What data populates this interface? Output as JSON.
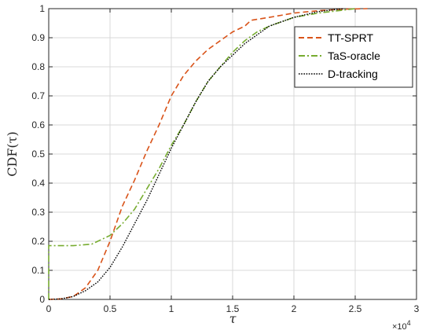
{
  "chart_data": {
    "type": "line",
    "title": "",
    "xlabel": "τ",
    "ylabel": "CDF(τ)",
    "x_exponent_base": "×10",
    "x_exponent_power": "4",
    "xlim": [
      0,
      3
    ],
    "ylim": [
      0,
      1
    ],
    "xticks": [
      0,
      0.5,
      1,
      1.5,
      2,
      2.5,
      3
    ],
    "xtick_labels": [
      "0",
      "0.5",
      "1",
      "1.5",
      "2",
      "2.5",
      "3"
    ],
    "yticks": [
      0,
      0.1,
      0.2,
      0.3,
      0.4,
      0.5,
      0.6,
      0.7,
      0.8,
      0.9,
      1
    ],
    "ytick_labels": [
      "0",
      "0.1",
      "0.2",
      "0.3",
      "0.4",
      "0.5",
      "0.6",
      "0.7",
      "0.8",
      "0.9",
      "1"
    ],
    "grid": true,
    "legend_position": "top-right",
    "series": [
      {
        "name": "TT-SPRT",
        "color": "#D95319",
        "style": "dashed",
        "x": [
          0,
          0.1,
          0.2,
          0.3,
          0.4,
          0.5,
          0.55,
          0.6,
          0.7,
          0.8,
          0.9,
          1.0,
          1.1,
          1.2,
          1.3,
          1.4,
          1.5,
          1.6,
          1.65,
          1.8,
          2.0,
          2.2,
          2.4,
          2.6
        ],
        "y": [
          0,
          0.002,
          0.01,
          0.04,
          0.1,
          0.2,
          0.26,
          0.32,
          0.41,
          0.51,
          0.6,
          0.7,
          0.77,
          0.82,
          0.86,
          0.89,
          0.92,
          0.94,
          0.96,
          0.97,
          0.985,
          0.993,
          0.998,
          1.0
        ]
      },
      {
        "name": "TaS-oracle",
        "color": "#77AC30",
        "style": "dashdot",
        "x": [
          0,
          0.2,
          0.35,
          0.4,
          0.45,
          0.5,
          0.6,
          0.7,
          0.8,
          0.9,
          1.0,
          1.1,
          1.2,
          1.3,
          1.4,
          1.5,
          1.6,
          1.7,
          1.8,
          2.0,
          2.2,
          2.4,
          2.5
        ],
        "y": [
          0.185,
          0.185,
          0.19,
          0.2,
          0.21,
          0.22,
          0.26,
          0.31,
          0.38,
          0.45,
          0.53,
          0.6,
          0.68,
          0.75,
          0.8,
          0.85,
          0.89,
          0.92,
          0.94,
          0.97,
          0.985,
          0.995,
          1.0
        ]
      },
      {
        "name": "D-tracking",
        "color": "#000000",
        "style": "dotted",
        "x": [
          0,
          0.1,
          0.2,
          0.3,
          0.4,
          0.5,
          0.6,
          0.7,
          0.8,
          0.9,
          1.0,
          1.1,
          1.2,
          1.3,
          1.4,
          1.5,
          1.6,
          1.7,
          1.8,
          2.0,
          2.2,
          2.4
        ],
        "y": [
          0,
          0.002,
          0.01,
          0.03,
          0.06,
          0.11,
          0.18,
          0.26,
          0.34,
          0.43,
          0.52,
          0.6,
          0.68,
          0.75,
          0.8,
          0.84,
          0.88,
          0.91,
          0.94,
          0.97,
          0.99,
          1.0
        ]
      }
    ]
  }
}
